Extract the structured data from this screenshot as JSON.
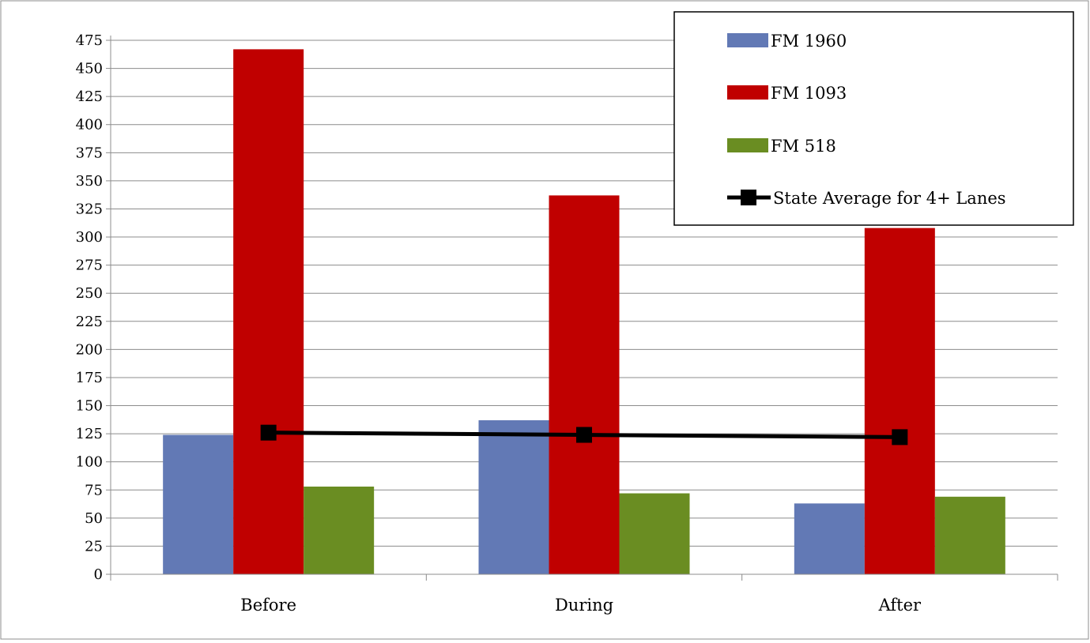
{
  "chart_data": {
    "type": "bar",
    "categories": [
      "Before",
      "During",
      "After"
    ],
    "series": [
      {
        "name": "FM 1960",
        "values": [
          124,
          137,
          63
        ],
        "color": "#6279b5"
      },
      {
        "name": "FM 1093",
        "values": [
          467,
          337,
          308
        ],
        "color": "#c00000"
      },
      {
        "name": "FM 518",
        "values": [
          78,
          72,
          69
        ],
        "color": "#6a8d22"
      }
    ],
    "line_series": {
      "name": "State Average for 4+ Lanes",
      "values": [
        126,
        124,
        122
      ],
      "color": "#000000",
      "marker": "square"
    },
    "y_ticks": [
      0,
      25,
      50,
      75,
      100,
      125,
      150,
      175,
      200,
      225,
      250,
      275,
      300,
      325,
      350,
      375,
      400,
      425,
      450,
      475
    ],
    "ylim": [
      0,
      475
    ],
    "grid": true,
    "legend_position": "top-right"
  }
}
